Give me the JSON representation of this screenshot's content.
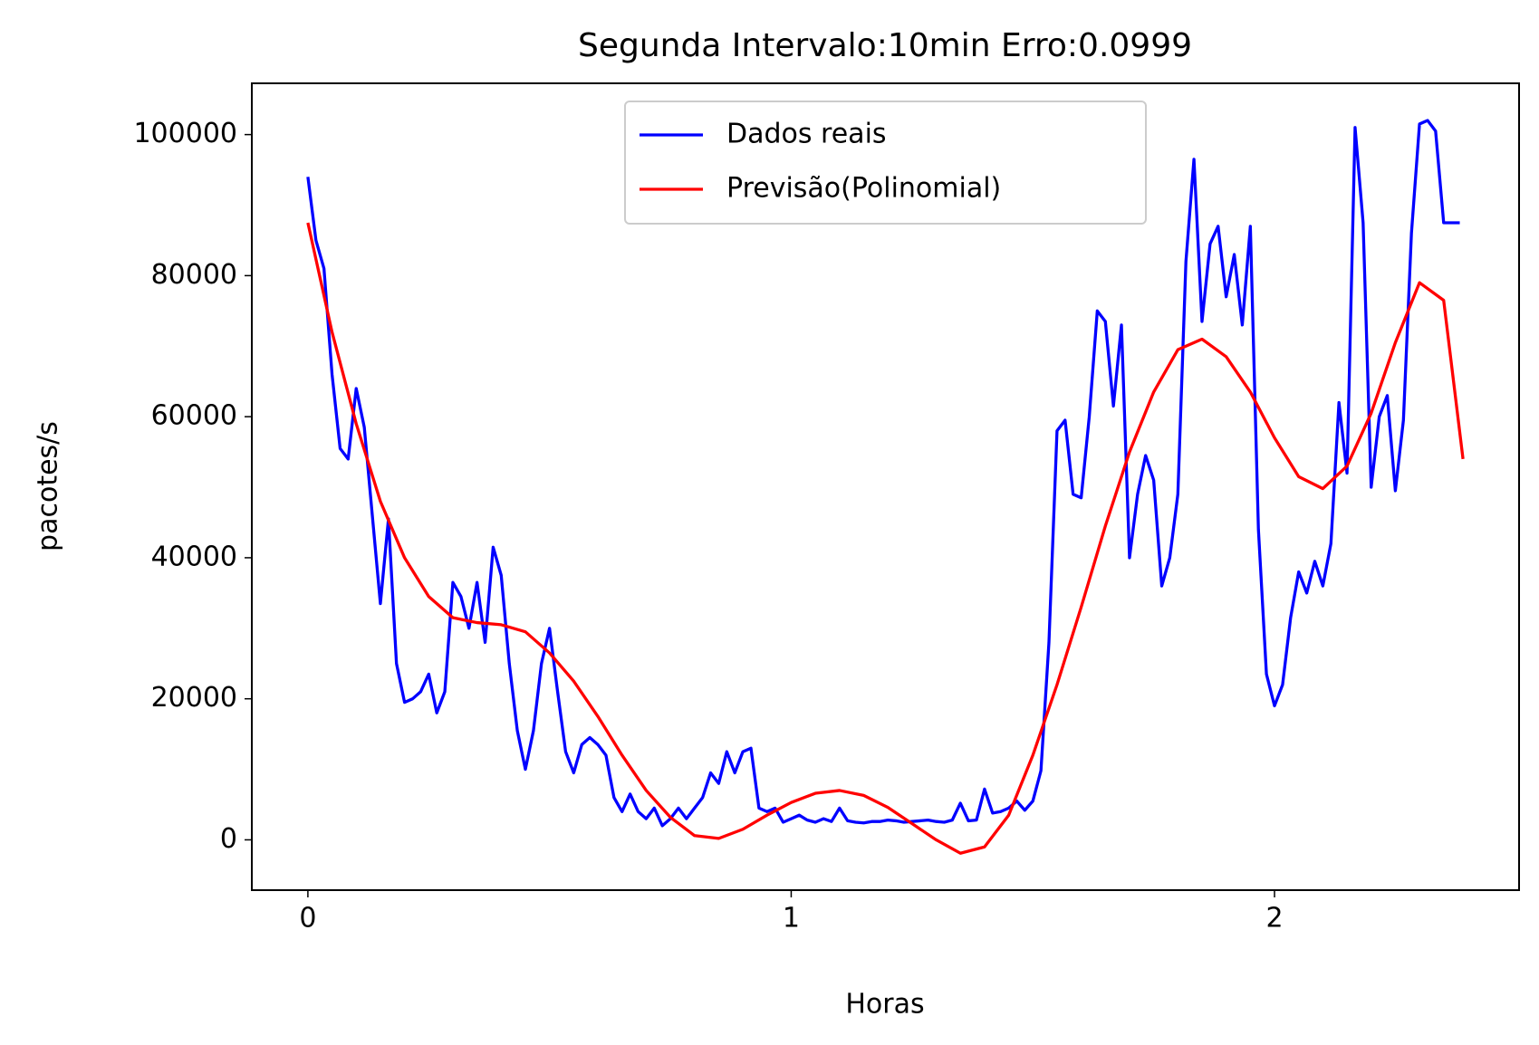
{
  "chart_data": {
    "type": "line",
    "title": "Segunda Intervalo:10min Erro:0.0999",
    "xlabel": "Horas",
    "ylabel": "pacotes/s",
    "xlim": [
      -0.116,
      2.506
    ],
    "ylim": [
      -7133,
      107270
    ],
    "xticks": [
      0,
      1,
      2
    ],
    "yticks": [
      0,
      20000,
      40000,
      60000,
      80000,
      100000
    ],
    "legend": "upper center",
    "grid": false,
    "series": [
      {
        "name": "Dados reais",
        "color": "#0000ff",
        "x": [
          0,
          0.0167,
          0.0333,
          0.05,
          0.0667,
          0.0833,
          0.1,
          0.1167,
          0.1333,
          0.15,
          0.1667,
          0.1833,
          0.2,
          0.2167,
          0.2333,
          0.25,
          0.2667,
          0.2833,
          0.3,
          0.3167,
          0.3333,
          0.35,
          0.3667,
          0.3833,
          0.4,
          0.4167,
          0.4333,
          0.45,
          0.4667,
          0.4833,
          0.5,
          0.5167,
          0.5333,
          0.55,
          0.5667,
          0.5833,
          0.6,
          0.6167,
          0.6333,
          0.65,
          0.6667,
          0.6833,
          0.7,
          0.7167,
          0.7333,
          0.75,
          0.7667,
          0.7833,
          0.8,
          0.8167,
          0.8333,
          0.85,
          0.8667,
          0.8833,
          0.9,
          0.9167,
          0.9333,
          0.95,
          0.9667,
          0.9833,
          1,
          1.0167,
          1.0333,
          1.05,
          1.0667,
          1.0833,
          1.1,
          1.1167,
          1.1333,
          1.15,
          1.1667,
          1.1833,
          1.2,
          1.2167,
          1.2333,
          1.25,
          1.2667,
          1.2833,
          1.3,
          1.3167,
          1.3333,
          1.35,
          1.3667,
          1.3833,
          1.4,
          1.4167,
          1.4333,
          1.45,
          1.4667,
          1.4833,
          1.5,
          1.5167,
          1.5333,
          1.55,
          1.5667,
          1.5833,
          1.6,
          1.6167,
          1.6333,
          1.65,
          1.6667,
          1.6833,
          1.7,
          1.7167,
          1.7333,
          1.75,
          1.7667,
          1.7833,
          1.8,
          1.8167,
          1.8333,
          1.85,
          1.8667,
          1.8833,
          1.9,
          1.9167,
          1.9333,
          1.95,
          1.9667,
          1.9833,
          2,
          2.0167,
          2.0333,
          2.05,
          2.0667,
          2.0833,
          2.1,
          2.1167,
          2.1333,
          2.15,
          2.1667,
          2.1833,
          2.2,
          2.2167,
          2.2333,
          2.25,
          2.2667,
          2.2833,
          2.3,
          2.3167,
          2.3333,
          2.35,
          2.3667,
          2.3833
        ],
        "values": [
          94000,
          85000,
          81000,
          66000,
          55500,
          54000,
          64000,
          58500,
          46000,
          33500,
          45500,
          25000,
          19500,
          20000,
          21000,
          23500,
          18000,
          21000,
          36500,
          34500,
          30000,
          36500,
          28000,
          41500,
          37500,
          25000,
          15500,
          10000,
          15500,
          25000,
          30000,
          21000,
          12500,
          9500,
          13500,
          14500,
          13500,
          12000,
          6000,
          4000,
          6500,
          4000,
          3000,
          4500,
          2000,
          3000,
          4500,
          3000,
          4500,
          6000,
          9500,
          8000,
          12500,
          9500,
          12500,
          13000,
          4500,
          4000,
          4500,
          2500,
          3000,
          3500,
          2800,
          2500,
          3000,
          2600,
          4500,
          2700,
          2500,
          2400,
          2600,
          2600,
          2800,
          2700,
          2500,
          2600,
          2700,
          2800,
          2600,
          2500,
          2800,
          5200,
          2700,
          2800,
          7200,
          3800,
          4000,
          4500,
          5500,
          4200,
          5500,
          9800,
          28000,
          58000,
          59500,
          49000,
          48500,
          60000,
          75000,
          73500,
          61500,
          73000,
          40000,
          49000,
          54500,
          51000,
          36000,
          40000,
          49000,
          82000,
          96500,
          73500,
          84500,
          87000,
          77000,
          83000,
          73000,
          87000,
          44000,
          23500,
          19000,
          22000,
          31500,
          38000,
          35000,
          39500,
          36000,
          42000,
          62000,
          52000,
          101000,
          87500,
          50000,
          60000,
          63000,
          49500,
          59500,
          86000,
          101500,
          102000,
          100500,
          87500,
          87500,
          87500
        ]
      },
      {
        "name": "Previsão(Polinomial)",
        "color": "#ff0000",
        "x": [
          0,
          0.05,
          0.1,
          0.15,
          0.2,
          0.25,
          0.3,
          0.35,
          0.4,
          0.45,
          0.5,
          0.55,
          0.6,
          0.65,
          0.7,
          0.75,
          0.8,
          0.85,
          0.9,
          0.95,
          1,
          1.05,
          1.1,
          1.15,
          1.2,
          1.25,
          1.3,
          1.35,
          1.4,
          1.45,
          1.5,
          1.55,
          1.6,
          1.65,
          1.7,
          1.75,
          1.8,
          1.85,
          1.9,
          1.95,
          2,
          2.05,
          2.1,
          2.15,
          2.2,
          2.25,
          2.3,
          2.35,
          2.39
        ],
        "values": [
          87500,
          72000,
          59000,
          48000,
          40000,
          34500,
          31500,
          30800,
          30500,
          29500,
          26500,
          22500,
          17500,
          12000,
          7000,
          3200,
          600,
          200,
          1500,
          3500,
          5300,
          6600,
          7000,
          6300,
          4600,
          2300,
          0,
          -1900,
          -1000,
          3500,
          12000,
          22000,
          33000,
          44500,
          55000,
          63500,
          69500,
          71000,
          68500,
          63500,
          57000,
          51500,
          49800,
          53000,
          60500,
          70500,
          79000,
          76500,
          54000
        ]
      }
    ]
  }
}
